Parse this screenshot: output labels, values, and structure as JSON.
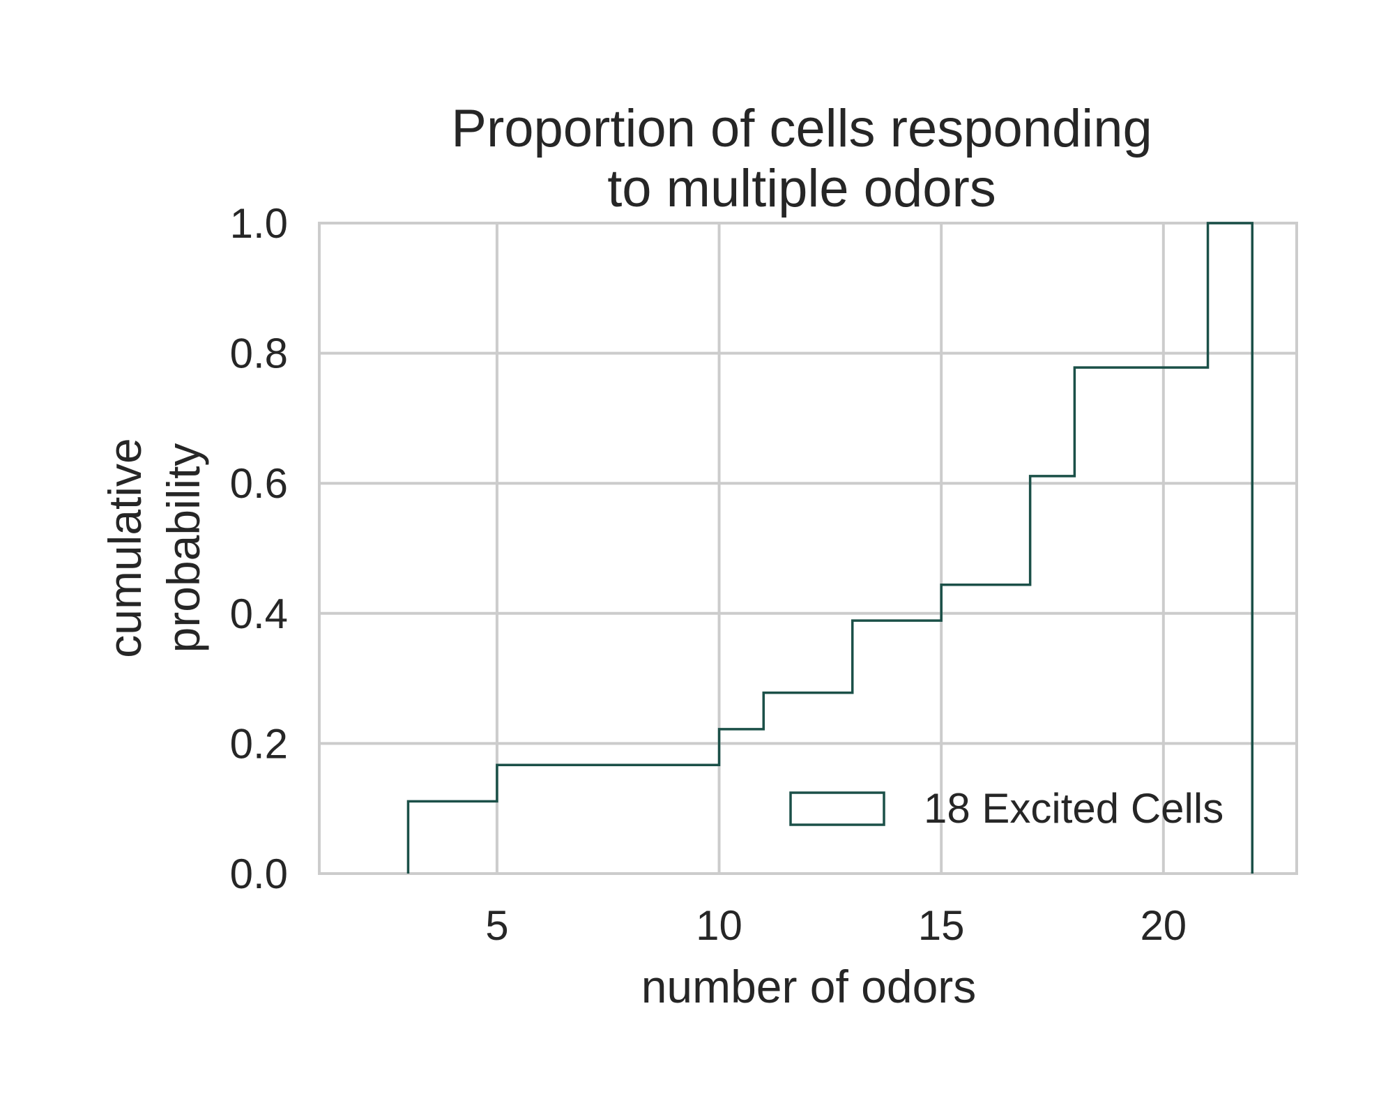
{
  "chart_data": {
    "type": "line",
    "title_lines": [
      "Proportion of cells responding",
      "to multiple odors"
    ],
    "xlabel": "number of odors",
    "ylabel_lines": [
      "cumulative",
      "probability"
    ],
    "xlim": [
      1,
      23
    ],
    "ylim": [
      0.0,
      1.0
    ],
    "x_ticks": [
      5,
      10,
      15,
      20
    ],
    "x_tick_labels": [
      "5",
      "10",
      "15",
      "20"
    ],
    "y_ticks": [
      0.0,
      0.2,
      0.4,
      0.6,
      0.8,
      1.0
    ],
    "y_tick_labels": [
      "0.0",
      "0.2",
      "0.4",
      "0.6",
      "0.8",
      "1.0"
    ],
    "grid": true,
    "legend_position": "lower-right",
    "series": [
      {
        "name": "18 Excited Cells",
        "style": "step-cumulative-histogram",
        "color": "#1b5048",
        "x": [
          3,
          5,
          10,
          11,
          13,
          15,
          17,
          18,
          21,
          22
        ],
        "y": [
          0.111,
          0.167,
          0.222,
          0.278,
          0.389,
          0.444,
          0.611,
          0.778,
          1.0,
          1.0
        ]
      }
    ]
  }
}
